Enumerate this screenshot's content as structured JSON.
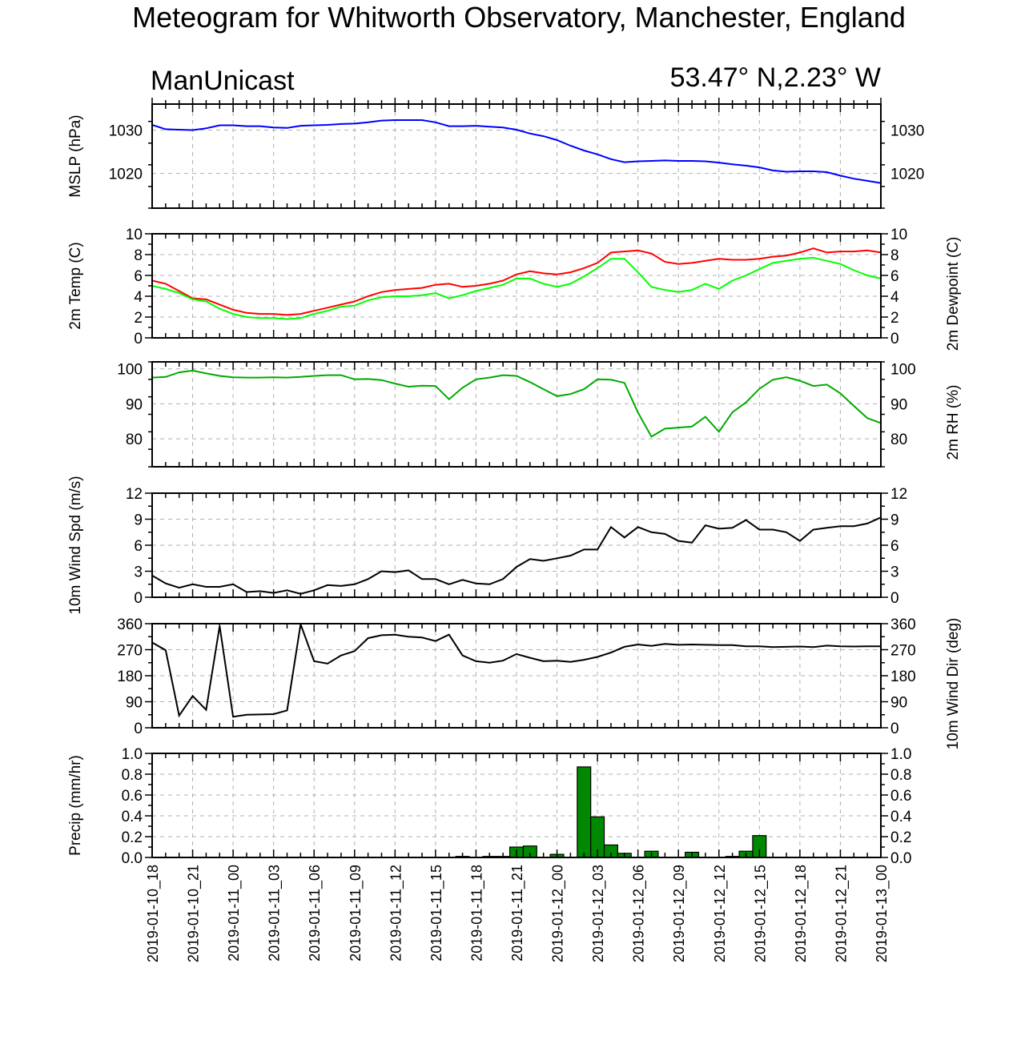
{
  "title": "Meteogram for Whitworth Observatory, Manchester, England",
  "source_label": "ManUnicast",
  "location": "53.47° N,2.23° W",
  "x_labels": [
    "2019-01-10_18",
    "2019-01-10_21",
    "2019-01-11_00",
    "2019-01-11_03",
    "2019-01-11_06",
    "2019-01-11_09",
    "2019-01-11_12",
    "2019-01-11_15",
    "2019-01-11_18",
    "2019-01-11_21",
    "2019-01-12_00",
    "2019-01-12_03",
    "2019-01-12_06",
    "2019-01-12_09",
    "2019-01-12_12",
    "2019-01-12_15",
    "2019-01-12_18",
    "2019-01-12_21",
    "2019-01-13_00"
  ],
  "chart_data": [
    {
      "type": "line",
      "ylabel": "MSLP (hPa)",
      "ylim": [
        1012,
        1036
      ],
      "yticks": [
        1020,
        1030
      ],
      "right_ticks": true,
      "grid": true,
      "series": [
        {
          "color": "#0000ff",
          "values": [
            1031.2,
            1030.2,
            1030.1,
            1030.0,
            1030.4,
            1031.1,
            1031.1,
            1030.9,
            1030.9,
            1030.6,
            1030.5,
            1031.0,
            1031.1,
            1031.2,
            1031.4,
            1031.5,
            1031.8,
            1032.2,
            1032.3,
            1032.3,
            1032.3,
            1031.8,
            1030.9,
            1030.9,
            1031.0,
            1030.8,
            1030.6,
            1030.1,
            1029.2,
            1028.6,
            1027.7,
            1026.4,
            1025.3,
            1024.4,
            1023.3,
            1022.6,
            1022.8,
            1022.9,
            1023.0,
            1022.9,
            1022.9,
            1022.8,
            1022.5,
            1022.1,
            1021.8,
            1021.4,
            1020.7,
            1020.4,
            1020.5,
            1020.5,
            1020.3,
            1019.5,
            1018.8,
            1018.3,
            1017.8
          ]
        }
      ]
    },
    {
      "type": "line",
      "ylabel": "2m Temp (C)",
      "ylabel_right": "2m Dewpoint (C)",
      "ylim": [
        0,
        10
      ],
      "yticks": [
        0,
        2,
        4,
        6,
        8,
        10
      ],
      "right_ticks": true,
      "grid": true,
      "series": [
        {
          "color": "#ff0000",
          "values": [
            5.5,
            5.2,
            4.5,
            3.8,
            3.7,
            3.2,
            2.7,
            2.4,
            2.3,
            2.3,
            2.2,
            2.3,
            2.6,
            2.9,
            3.2,
            3.5,
            4.0,
            4.4,
            4.6,
            4.7,
            4.8,
            5.1,
            5.2,
            4.9,
            5.0,
            5.2,
            5.5,
            6.1,
            6.4,
            6.2,
            6.1,
            6.3,
            6.7,
            7.2,
            8.2,
            8.3,
            8.4,
            8.1,
            7.3,
            7.1,
            7.2,
            7.4,
            7.6,
            7.5,
            7.5,
            7.6,
            7.8,
            7.9,
            8.2,
            8.6,
            8.2,
            8.3,
            8.3,
            8.4,
            8.2
          ]
        },
        {
          "color": "#00ff00",
          "values": [
            5.0,
            4.7,
            4.3,
            3.7,
            3.5,
            2.8,
            2.3,
            2.0,
            1.9,
            1.9,
            1.8,
            1.9,
            2.3,
            2.6,
            3.0,
            3.1,
            3.6,
            3.9,
            4.0,
            4.0,
            4.1,
            4.3,
            3.8,
            4.1,
            4.5,
            4.8,
            5.1,
            5.7,
            5.7,
            5.2,
            4.9,
            5.2,
            5.9,
            6.7,
            7.6,
            7.6,
            6.3,
            4.9,
            4.6,
            4.4,
            4.6,
            5.2,
            4.7,
            5.5,
            6.0,
            6.6,
            7.2,
            7.4,
            7.6,
            7.7,
            7.4,
            7.1,
            6.5,
            6.0,
            5.7
          ]
        }
      ]
    },
    {
      "type": "line",
      "ylabel_right": "2m RH (%)",
      "ylim": [
        72,
        102
      ],
      "yticks": [
        80,
        90,
        100
      ],
      "right_ticks": true,
      "grid": true,
      "series": [
        {
          "color": "#00aa00",
          "values": [
            97.5,
            97.7,
            99.0,
            99.5,
            98.7,
            98.0,
            97.6,
            97.5,
            97.5,
            97.6,
            97.5,
            97.7,
            98.0,
            98.2,
            98.2,
            97.0,
            97.1,
            96.8,
            95.8,
            94.9,
            95.2,
            95.1,
            91.3,
            94.6,
            97.0,
            97.5,
            98.2,
            98.0,
            96.2,
            94.2,
            92.2,
            92.8,
            94.2,
            97.0,
            96.9,
            96.0,
            87.5,
            80.6,
            82.9,
            83.2,
            83.5,
            86.3,
            82.0,
            87.6,
            90.4,
            94.3,
            96.9,
            97.6,
            96.6,
            95.1,
            95.5,
            93.0,
            89.4,
            85.9,
            84.5
          ]
        }
      ]
    },
    {
      "type": "line",
      "ylabel": "10m Wind Spd (m/s)",
      "ylim": [
        0,
        12
      ],
      "yticks": [
        0,
        3,
        6,
        9,
        12
      ],
      "right_ticks": true,
      "grid": true,
      "series": [
        {
          "color": "#000000",
          "values": [
            2.5,
            1.6,
            1.1,
            1.5,
            1.2,
            1.2,
            1.5,
            0.6,
            0.7,
            0.5,
            0.8,
            0.4,
            0.8,
            1.4,
            1.3,
            1.5,
            2.1,
            3.0,
            2.9,
            3.1,
            2.1,
            2.1,
            1.5,
            2.0,
            1.6,
            1.5,
            2.1,
            3.5,
            4.4,
            4.2,
            4.5,
            4.8,
            5.5,
            5.5,
            8.1,
            6.9,
            8.1,
            7.5,
            7.3,
            6.5,
            6.3,
            8.3,
            7.9,
            8.0,
            8.9,
            7.8,
            7.8,
            7.5,
            6.5,
            7.8,
            8.0,
            8.2,
            8.2,
            8.5,
            9.2
          ]
        }
      ]
    },
    {
      "type": "line",
      "ylabel_right": "10m Wind Dir (deg)",
      "ylim": [
        0,
        360
      ],
      "yticks": [
        0,
        90,
        180,
        270,
        360
      ],
      "right_ticks": true,
      "grid": true,
      "series": [
        {
          "color": "#000000",
          "values": [
            295,
            268,
            42,
            110,
            62,
            352,
            38,
            45,
            46,
            47,
            60,
            358,
            230,
            222,
            250,
            265,
            310,
            320,
            322,
            315,
            312,
            300,
            322,
            250,
            230,
            225,
            232,
            255,
            242,
            230,
            232,
            228,
            235,
            245,
            260,
            280,
            288,
            283,
            290,
            287,
            288,
            287,
            286,
            286,
            282,
            282,
            279,
            280,
            281,
            279,
            284,
            282,
            281,
            282,
            282
          ]
        }
      ]
    },
    {
      "type": "bar",
      "ylabel": "Precip (mm/hr)",
      "ylim": [
        0,
        1.0
      ],
      "yticks": [
        0.0,
        0.2,
        0.4,
        0.6,
        0.8,
        1.0
      ],
      "right_ticks": true,
      "grid": true,
      "bar_color": "#008800",
      "values": [
        0,
        0,
        0,
        0,
        0,
        0,
        0,
        0,
        0,
        0,
        0,
        0,
        0,
        0,
        0,
        0,
        0,
        0,
        0,
        0,
        0,
        0,
        0,
        0.01,
        0,
        0.01,
        0.01,
        0.1,
        0.11,
        0,
        0.03,
        0,
        0.87,
        0.39,
        0.12,
        0.04,
        0,
        0.06,
        0,
        0,
        0.05,
        0,
        0,
        0.01,
        0.06,
        0.21,
        0,
        0,
        0,
        0,
        0,
        0,
        0,
        0,
        0
      ]
    }
  ]
}
